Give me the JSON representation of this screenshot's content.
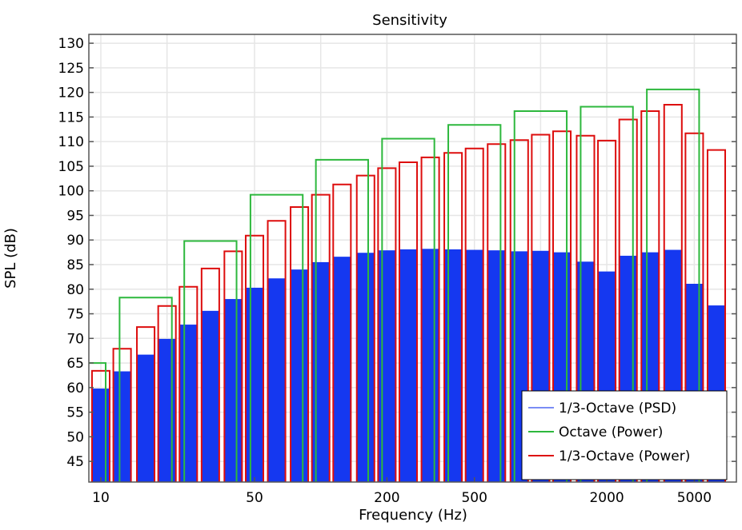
{
  "chart_data": {
    "type": "bar",
    "title": "Sensitivity",
    "xlabel": "Frequency (Hz)",
    "ylabel": "SPL (dB)",
    "xscale": "log",
    "xlim": [
      8.82,
      7770
    ],
    "ylim": [
      40.8,
      131.8
    ],
    "grid": true,
    "legend_placement": "bottom-right",
    "x_ticks": [
      10,
      50,
      200,
      500,
      2000,
      5000
    ],
    "x_tick_labels": [
      "10",
      "50",
      "200",
      "500",
      "2000",
      "5000"
    ],
    "x_grid": [
      10,
      20,
      50,
      100,
      200,
      500,
      1000,
      2000,
      5000
    ],
    "y_ticks": [
      45,
      50,
      55,
      60,
      65,
      70,
      75,
      80,
      85,
      90,
      95,
      100,
      105,
      110,
      115,
      120,
      125,
      130
    ],
    "third_octave_centers": [
      10,
      12.5,
      16,
      20,
      25,
      31.5,
      40,
      50,
      63,
      80,
      100,
      125,
      160,
      200,
      250,
      315,
      400,
      500,
      630,
      800,
      1000,
      1250,
      1600,
      2000,
      2500,
      3150,
      4000,
      5000,
      6300
    ],
    "octave_centers": [
      8,
      16,
      31.5,
      63,
      125,
      250,
      500,
      1000,
      2000,
      4000
    ],
    "series": [
      {
        "name": "1/3-Octave (PSD)",
        "color": "#1538f0",
        "style": "filled-bar",
        "band": "third",
        "values": [
          59.8,
          63.3,
          66.7,
          69.9,
          72.8,
          75.6,
          78.0,
          80.3,
          82.2,
          84.0,
          85.5,
          86.6,
          87.4,
          87.9,
          88.1,
          88.2,
          88.1,
          88.0,
          87.9,
          87.7,
          87.8,
          87.5,
          85.6,
          83.6,
          86.8,
          87.5,
          88.0,
          81.1,
          76.7
        ]
      },
      {
        "name": "Octave (Power)",
        "color": "#2db83d",
        "style": "outline-bar",
        "band": "octave",
        "values": [
          65.0,
          78.3,
          89.8,
          99.2,
          106.3,
          110.6,
          113.4,
          116.2,
          117.1,
          120.6
        ]
      },
      {
        "name": "1/3-Octave (Power)",
        "color": "#dd0d0d",
        "style": "outline-bar",
        "band": "third",
        "values": [
          63.4,
          67.9,
          72.3,
          76.6,
          80.5,
          84.2,
          87.7,
          90.9,
          93.9,
          96.7,
          99.2,
          101.3,
          103.1,
          104.6,
          105.8,
          106.8,
          107.7,
          108.6,
          109.5,
          110.3,
          111.4,
          112.1,
          111.2,
          110.2,
          114.5,
          116.2,
          117.5,
          111.7,
          108.3
        ]
      }
    ],
    "legend_swatch_color_psd": "#7a8cf5"
  }
}
